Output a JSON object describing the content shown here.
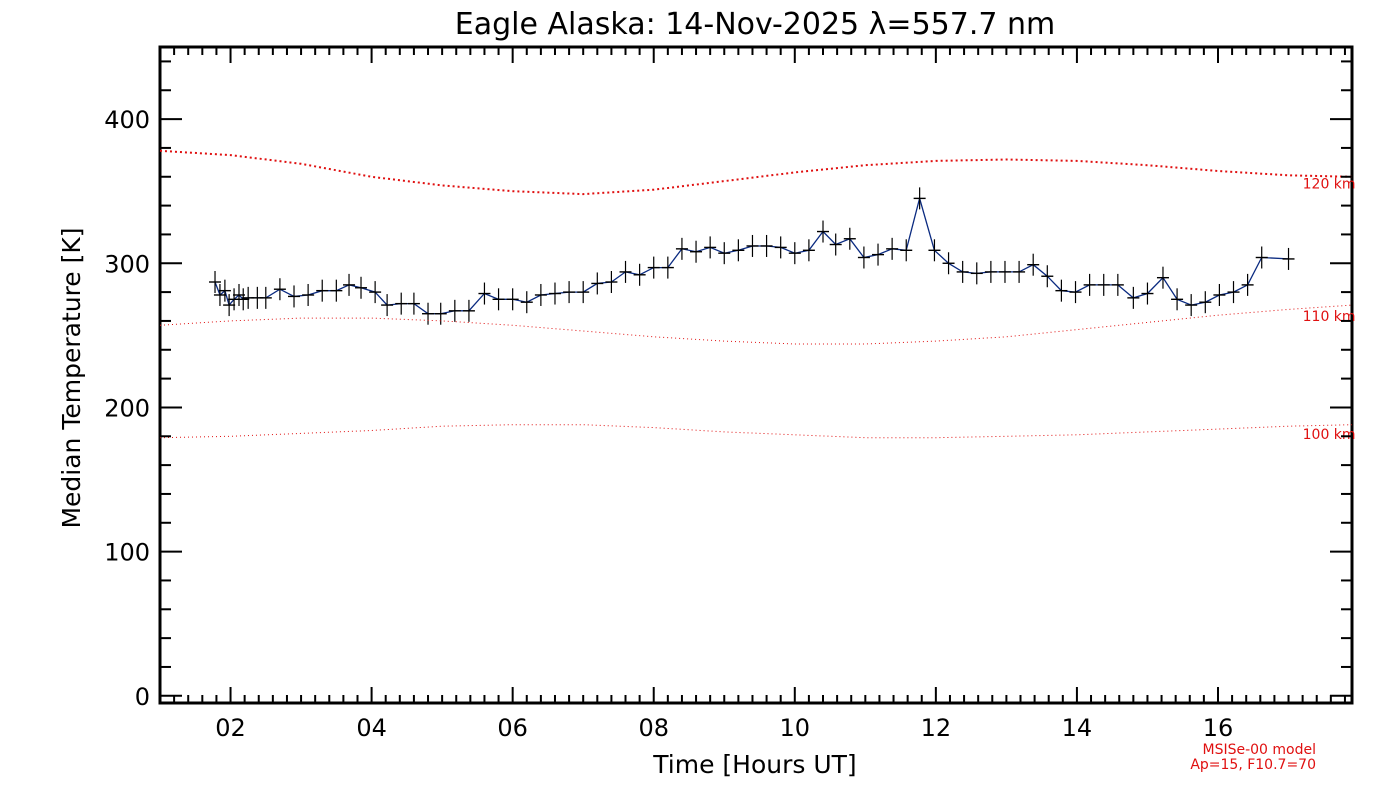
{
  "chart_data": {
    "type": "line",
    "title": "Eagle Alaska: 14-Nov-2025 λ=557.7 nm",
    "xlabel": "Time [Hours UT]",
    "ylabel": "Median Temperature [K]",
    "xlim": [
      1.0,
      17.9
    ],
    "ylim": [
      -5,
      450
    ],
    "x_ticks": [
      {
        "value": 2,
        "label": "02"
      },
      {
        "value": 4,
        "label": "04"
      },
      {
        "value": 6,
        "label": "06"
      },
      {
        "value": 8,
        "label": "08"
      },
      {
        "value": 10,
        "label": "10"
      },
      {
        "value": 12,
        "label": "12"
      },
      {
        "value": 14,
        "label": "14"
      },
      {
        "value": 16,
        "label": "16"
      }
    ],
    "y_ticks": [
      {
        "value": 0,
        "label": "0"
      },
      {
        "value": 100,
        "label": "100"
      },
      {
        "value": 200,
        "label": "200"
      },
      {
        "value": 300,
        "label": "300"
      },
      {
        "value": 400,
        "label": "400"
      }
    ],
    "grid": false,
    "series": [
      {
        "color": "#001a66",
        "marker": "plus-with-error-bar",
        "x": [
          1.78,
          1.85,
          1.92,
          1.98,
          2.05,
          2.12,
          2.18,
          2.25,
          2.38,
          2.5,
          2.7,
          2.9,
          3.1,
          3.3,
          3.5,
          3.68,
          3.85,
          4.05,
          4.22,
          4.42,
          4.6,
          4.8,
          4.98,
          5.18,
          5.38,
          5.6,
          5.8,
          6.0,
          6.2,
          6.4,
          6.6,
          6.8,
          7.0,
          7.2,
          7.4,
          7.6,
          7.8,
          8.0,
          8.2,
          8.4,
          8.6,
          8.8,
          9.0,
          9.2,
          9.4,
          9.6,
          9.8,
          10.0,
          10.2,
          10.4,
          10.58,
          10.78,
          10.98,
          11.18,
          11.38,
          11.58,
          11.77,
          11.98,
          12.18,
          12.38,
          12.58,
          12.78,
          12.98,
          13.18,
          13.38,
          13.58,
          13.78,
          13.98,
          14.18,
          14.38,
          14.58,
          14.8,
          15.0,
          15.22,
          15.42,
          15.62,
          15.82,
          16.02,
          16.22,
          16.42,
          16.62,
          17.0
        ],
        "y": [
          287,
          278,
          281,
          271,
          275,
          278,
          275,
          276,
          276,
          276,
          282,
          277,
          278,
          281,
          281,
          285,
          283,
          280,
          271,
          272,
          272,
          265,
          265,
          267,
          267,
          279,
          275,
          275,
          273,
          278,
          279,
          280,
          280,
          286,
          287,
          294,
          292,
          297,
          297,
          310,
          308,
          311,
          307,
          309,
          312,
          312,
          311,
          307,
          309,
          322,
          313,
          317,
          304,
          306,
          310,
          309,
          345,
          309,
          300,
          294,
          293,
          294,
          294,
          294,
          299,
          291,
          281,
          280,
          285,
          285,
          285,
          276,
          279,
          290,
          275,
          271,
          273,
          278,
          280,
          285,
          304,
          303
        ]
      },
      {
        "name": "120 km",
        "color": "#e01010",
        "style": "dotted",
        "x": [
          1.0,
          2.0,
          3.0,
          4.0,
          5.0,
          6.0,
          7.0,
          8.0,
          9.0,
          10.0,
          11.0,
          12.0,
          13.0,
          14.0,
          15.0,
          16.0,
          17.0,
          17.9
        ],
        "y": [
          378,
          375,
          369,
          360,
          354,
          350,
          348,
          351,
          357,
          363,
          368,
          371,
          372,
          371,
          368,
          364,
          361,
          360
        ]
      },
      {
        "name": "110 km",
        "color": "#e01010",
        "style": "dotted",
        "x": [
          1.0,
          2.0,
          3.0,
          4.0,
          5.0,
          6.0,
          7.0,
          8.0,
          9.0,
          10.0,
          11.0,
          12.0,
          13.0,
          14.0,
          15.0,
          16.0,
          17.0,
          17.9
        ],
        "y": [
          257,
          260,
          262,
          262,
          260,
          257,
          253,
          249,
          246,
          244,
          244,
          246,
          249,
          254,
          259,
          264,
          268,
          271
        ]
      },
      {
        "name": "100 km",
        "color": "#e01010",
        "style": "dotted",
        "x": [
          1.0,
          2.0,
          3.0,
          4.0,
          5.0,
          6.0,
          7.0,
          8.0,
          9.0,
          10.0,
          11.0,
          12.0,
          13.0,
          14.0,
          15.0,
          16.0,
          17.0,
          17.9
        ],
        "y": [
          179,
          180,
          182,
          184,
          187,
          188,
          188,
          186,
          183,
          181,
          179,
          179,
          180,
          181,
          183,
          185,
          187,
          188
        ]
      }
    ],
    "curve_labels": [
      {
        "text": "120 km",
        "x": 17.2,
        "y": 352
      },
      {
        "text": "110 km",
        "x": 17.2,
        "y": 260
      },
      {
        "text": "100 km",
        "x": 17.2,
        "y": 178
      }
    ],
    "model_note": [
      "MSISe-00 model",
      "Ap=15, F10.7=70"
    ]
  }
}
